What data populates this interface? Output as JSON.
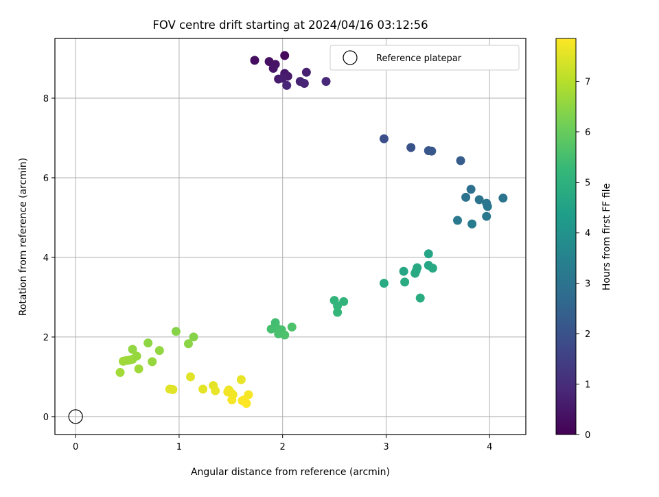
{
  "chart_data": {
    "type": "scatter",
    "title": "FOV centre drift starting at 2024/04/16 03:12:56",
    "xlabel": "Angular distance from reference (arcmin)",
    "ylabel": "Rotation from reference (arcmin)",
    "xlim": [
      -0.2,
      4.35
    ],
    "ylim": [
      -0.45,
      9.5
    ],
    "xticks": [
      0,
      1,
      2,
      3,
      4
    ],
    "yticks": [
      0,
      2,
      4,
      6,
      8
    ],
    "grid": true,
    "legend": {
      "position": "top-right",
      "entries": [
        "Reference platepar"
      ]
    },
    "reference_point": {
      "x": 0,
      "y": 0
    },
    "colorbar": {
      "label": "Hours from first FF file",
      "range": [
        0,
        7.85
      ],
      "ticks": [
        0,
        1,
        2,
        3,
        4,
        5,
        6,
        7
      ],
      "colormap": [
        "#440154",
        "#482878",
        "#3e4989",
        "#31688e",
        "#26828e",
        "#1f9e89",
        "#35b779",
        "#6ece58",
        "#b5de2b",
        "#fde725"
      ]
    },
    "points": [
      {
        "x": 1.73,
        "y": 8.95,
        "h": 0.3
      },
      {
        "x": 1.87,
        "y": 8.92,
        "h": 0.35
      },
      {
        "x": 1.93,
        "y": 8.85,
        "h": 0.4
      },
      {
        "x": 2.02,
        "y": 9.07,
        "h": 0.2
      },
      {
        "x": 1.91,
        "y": 8.75,
        "h": 0.45
      },
      {
        "x": 2.02,
        "y": 8.62,
        "h": 0.5
      },
      {
        "x": 2.05,
        "y": 8.55,
        "h": 0.55
      },
      {
        "x": 1.96,
        "y": 8.48,
        "h": 0.6
      },
      {
        "x": 2.0,
        "y": 8.5,
        "h": 0.65
      },
      {
        "x": 2.23,
        "y": 8.65,
        "h": 0.7
      },
      {
        "x": 2.17,
        "y": 8.42,
        "h": 0.75
      },
      {
        "x": 2.21,
        "y": 8.37,
        "h": 0.8
      },
      {
        "x": 2.04,
        "y": 8.32,
        "h": 0.85
      },
      {
        "x": 2.42,
        "y": 8.42,
        "h": 0.9
      },
      {
        "x": 2.98,
        "y": 6.98,
        "h": 1.9
      },
      {
        "x": 3.24,
        "y": 6.76,
        "h": 2.0
      },
      {
        "x": 3.41,
        "y": 6.68,
        "h": 2.1
      },
      {
        "x": 3.44,
        "y": 6.67,
        "h": 2.15
      },
      {
        "x": 3.72,
        "y": 6.43,
        "h": 2.3
      },
      {
        "x": 3.82,
        "y": 5.71,
        "h": 2.9
      },
      {
        "x": 3.77,
        "y": 5.51,
        "h": 2.95
      },
      {
        "x": 3.9,
        "y": 5.45,
        "h": 3.0
      },
      {
        "x": 3.97,
        "y": 5.36,
        "h": 3.05
      },
      {
        "x": 3.98,
        "y": 5.28,
        "h": 3.1
      },
      {
        "x": 4.13,
        "y": 5.49,
        "h": 3.0
      },
      {
        "x": 3.69,
        "y": 4.93,
        "h": 3.2
      },
      {
        "x": 3.83,
        "y": 4.84,
        "h": 3.25
      },
      {
        "x": 3.97,
        "y": 5.03,
        "h": 3.15
      },
      {
        "x": 3.41,
        "y": 4.09,
        "h": 4.6
      },
      {
        "x": 3.17,
        "y": 3.65,
        "h": 4.65
      },
      {
        "x": 3.3,
        "y": 3.74,
        "h": 4.7
      },
      {
        "x": 3.29,
        "y": 3.66,
        "h": 4.7
      },
      {
        "x": 3.28,
        "y": 3.6,
        "h": 4.75
      },
      {
        "x": 3.41,
        "y": 3.8,
        "h": 4.65
      },
      {
        "x": 3.45,
        "y": 3.73,
        "h": 4.7
      },
      {
        "x": 2.98,
        "y": 3.35,
        "h": 4.8
      },
      {
        "x": 3.18,
        "y": 3.38,
        "h": 4.8
      },
      {
        "x": 3.33,
        "y": 2.98,
        "h": 4.85
      },
      {
        "x": 2.5,
        "y": 2.92,
        "h": 5.1
      },
      {
        "x": 2.59,
        "y": 2.89,
        "h": 5.1
      },
      {
        "x": 2.53,
        "y": 2.78,
        "h": 5.15
      },
      {
        "x": 2.53,
        "y": 2.62,
        "h": 5.2
      },
      {
        "x": 1.93,
        "y": 2.36,
        "h": 5.45
      },
      {
        "x": 1.89,
        "y": 2.2,
        "h": 5.5
      },
      {
        "x": 1.95,
        "y": 2.21,
        "h": 5.5
      },
      {
        "x": 1.99,
        "y": 2.18,
        "h": 5.55
      },
      {
        "x": 1.96,
        "y": 2.08,
        "h": 5.55
      },
      {
        "x": 2.02,
        "y": 2.05,
        "h": 5.6
      },
      {
        "x": 2.09,
        "y": 2.25,
        "h": 5.6
      },
      {
        "x": 0.97,
        "y": 2.14,
        "h": 6.4
      },
      {
        "x": 1.14,
        "y": 2.0,
        "h": 6.4
      },
      {
        "x": 1.09,
        "y": 1.83,
        "h": 6.45
      },
      {
        "x": 0.7,
        "y": 1.85,
        "h": 6.5
      },
      {
        "x": 0.81,
        "y": 1.66,
        "h": 6.55
      },
      {
        "x": 0.55,
        "y": 1.69,
        "h": 6.55
      },
      {
        "x": 0.59,
        "y": 1.52,
        "h": 6.6
      },
      {
        "x": 0.55,
        "y": 1.44,
        "h": 6.6
      },
      {
        "x": 0.52,
        "y": 1.42,
        "h": 6.65
      },
      {
        "x": 0.49,
        "y": 1.41,
        "h": 6.65
      },
      {
        "x": 0.46,
        "y": 1.39,
        "h": 6.7
      },
      {
        "x": 0.74,
        "y": 1.38,
        "h": 6.6
      },
      {
        "x": 0.61,
        "y": 1.2,
        "h": 6.7
      },
      {
        "x": 0.43,
        "y": 1.11,
        "h": 6.75
      },
      {
        "x": 1.11,
        "y": 1.0,
        "h": 7.5
      },
      {
        "x": 1.6,
        "y": 0.93,
        "h": 7.6
      },
      {
        "x": 1.33,
        "y": 0.78,
        "h": 7.55
      },
      {
        "x": 1.23,
        "y": 0.69,
        "h": 7.55
      },
      {
        "x": 0.91,
        "y": 0.69,
        "h": 7.5
      },
      {
        "x": 0.94,
        "y": 0.68,
        "h": 7.5
      },
      {
        "x": 1.35,
        "y": 0.65,
        "h": 7.6
      },
      {
        "x": 1.48,
        "y": 0.67,
        "h": 7.65
      },
      {
        "x": 1.5,
        "y": 0.6,
        "h": 7.65
      },
      {
        "x": 1.47,
        "y": 0.62,
        "h": 7.7
      },
      {
        "x": 1.52,
        "y": 0.55,
        "h": 7.7
      },
      {
        "x": 1.67,
        "y": 0.55,
        "h": 7.75
      },
      {
        "x": 1.51,
        "y": 0.42,
        "h": 7.75
      },
      {
        "x": 1.61,
        "y": 0.4,
        "h": 7.8
      },
      {
        "x": 1.63,
        "y": 0.42,
        "h": 7.8
      },
      {
        "x": 1.65,
        "y": 0.33,
        "h": 7.85
      }
    ]
  }
}
